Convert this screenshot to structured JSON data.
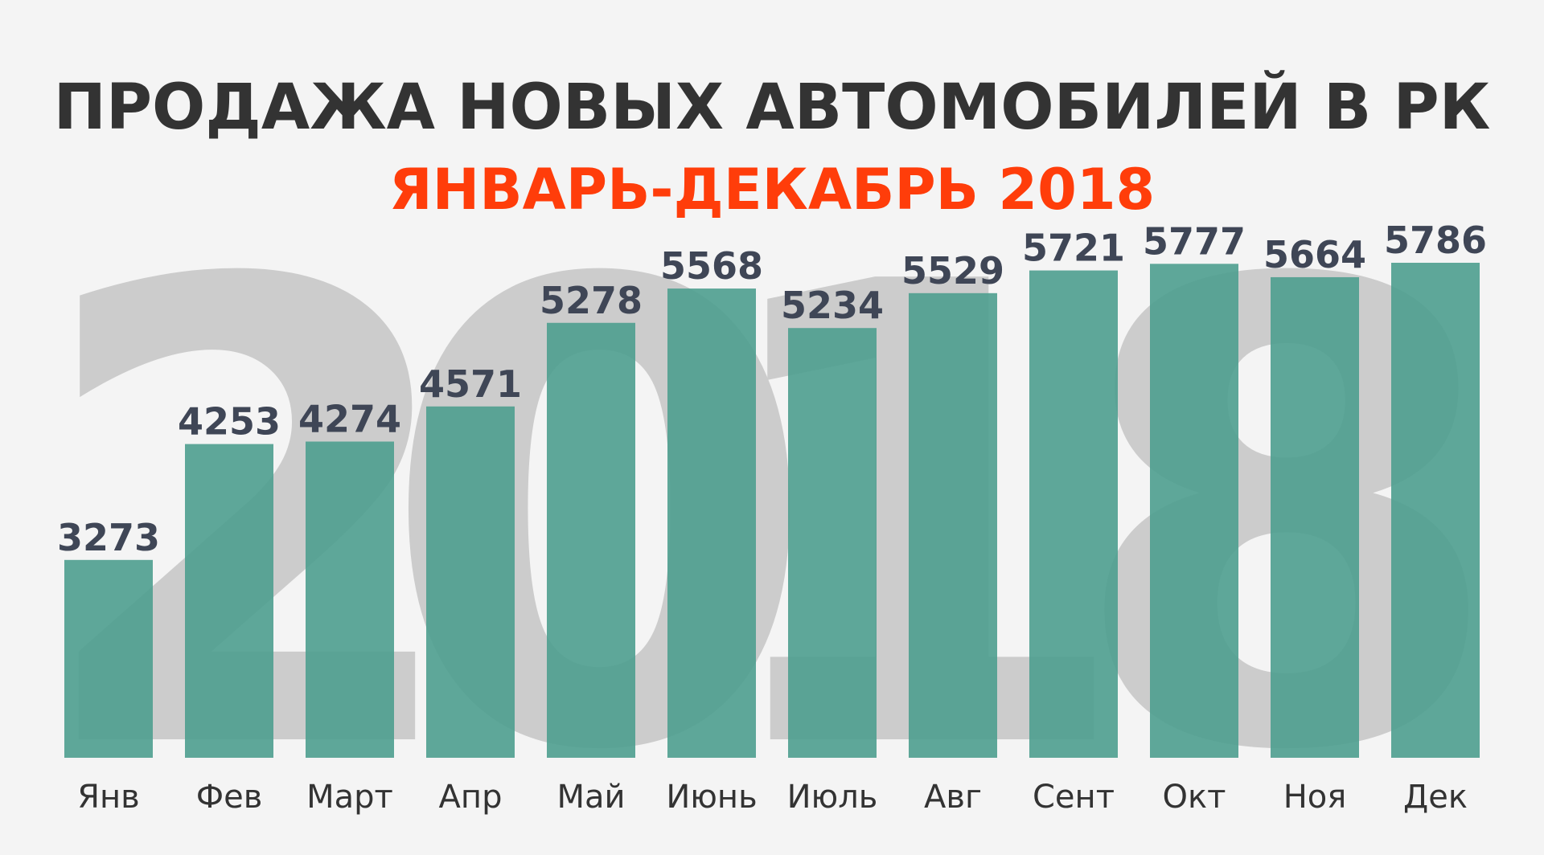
{
  "chart_data": {
    "type": "bar",
    "title": "ПРОДАЖА НОВЫХ АВТОМОБИЛЕЙ В РК",
    "subtitle": "ЯНВАРЬ-ДЕКАБРЬ 2018",
    "background_text": "2018",
    "categories": [
      "Янв",
      "Фев",
      "Март",
      "Апр",
      "Май",
      "Июнь",
      "Июль",
      "Авг",
      "Сент",
      "Окт",
      "Ноя",
      "Дек"
    ],
    "values": [
      3273,
      4253,
      4274,
      4571,
      5278,
      5568,
      5234,
      5529,
      5721,
      5777,
      5664,
      5786
    ],
    "xlabel": "",
    "ylabel": "",
    "ylim": [
      1600,
      5786
    ],
    "grid": false,
    "legend": "none",
    "colors": {
      "bar": "#4e9f8f",
      "title": "#333333",
      "subtitle": "#ff3d0a",
      "value_label": "#3f4656",
      "category_label": "#333333",
      "background_text": "#cccccc",
      "background": "#f4f4f4"
    }
  }
}
